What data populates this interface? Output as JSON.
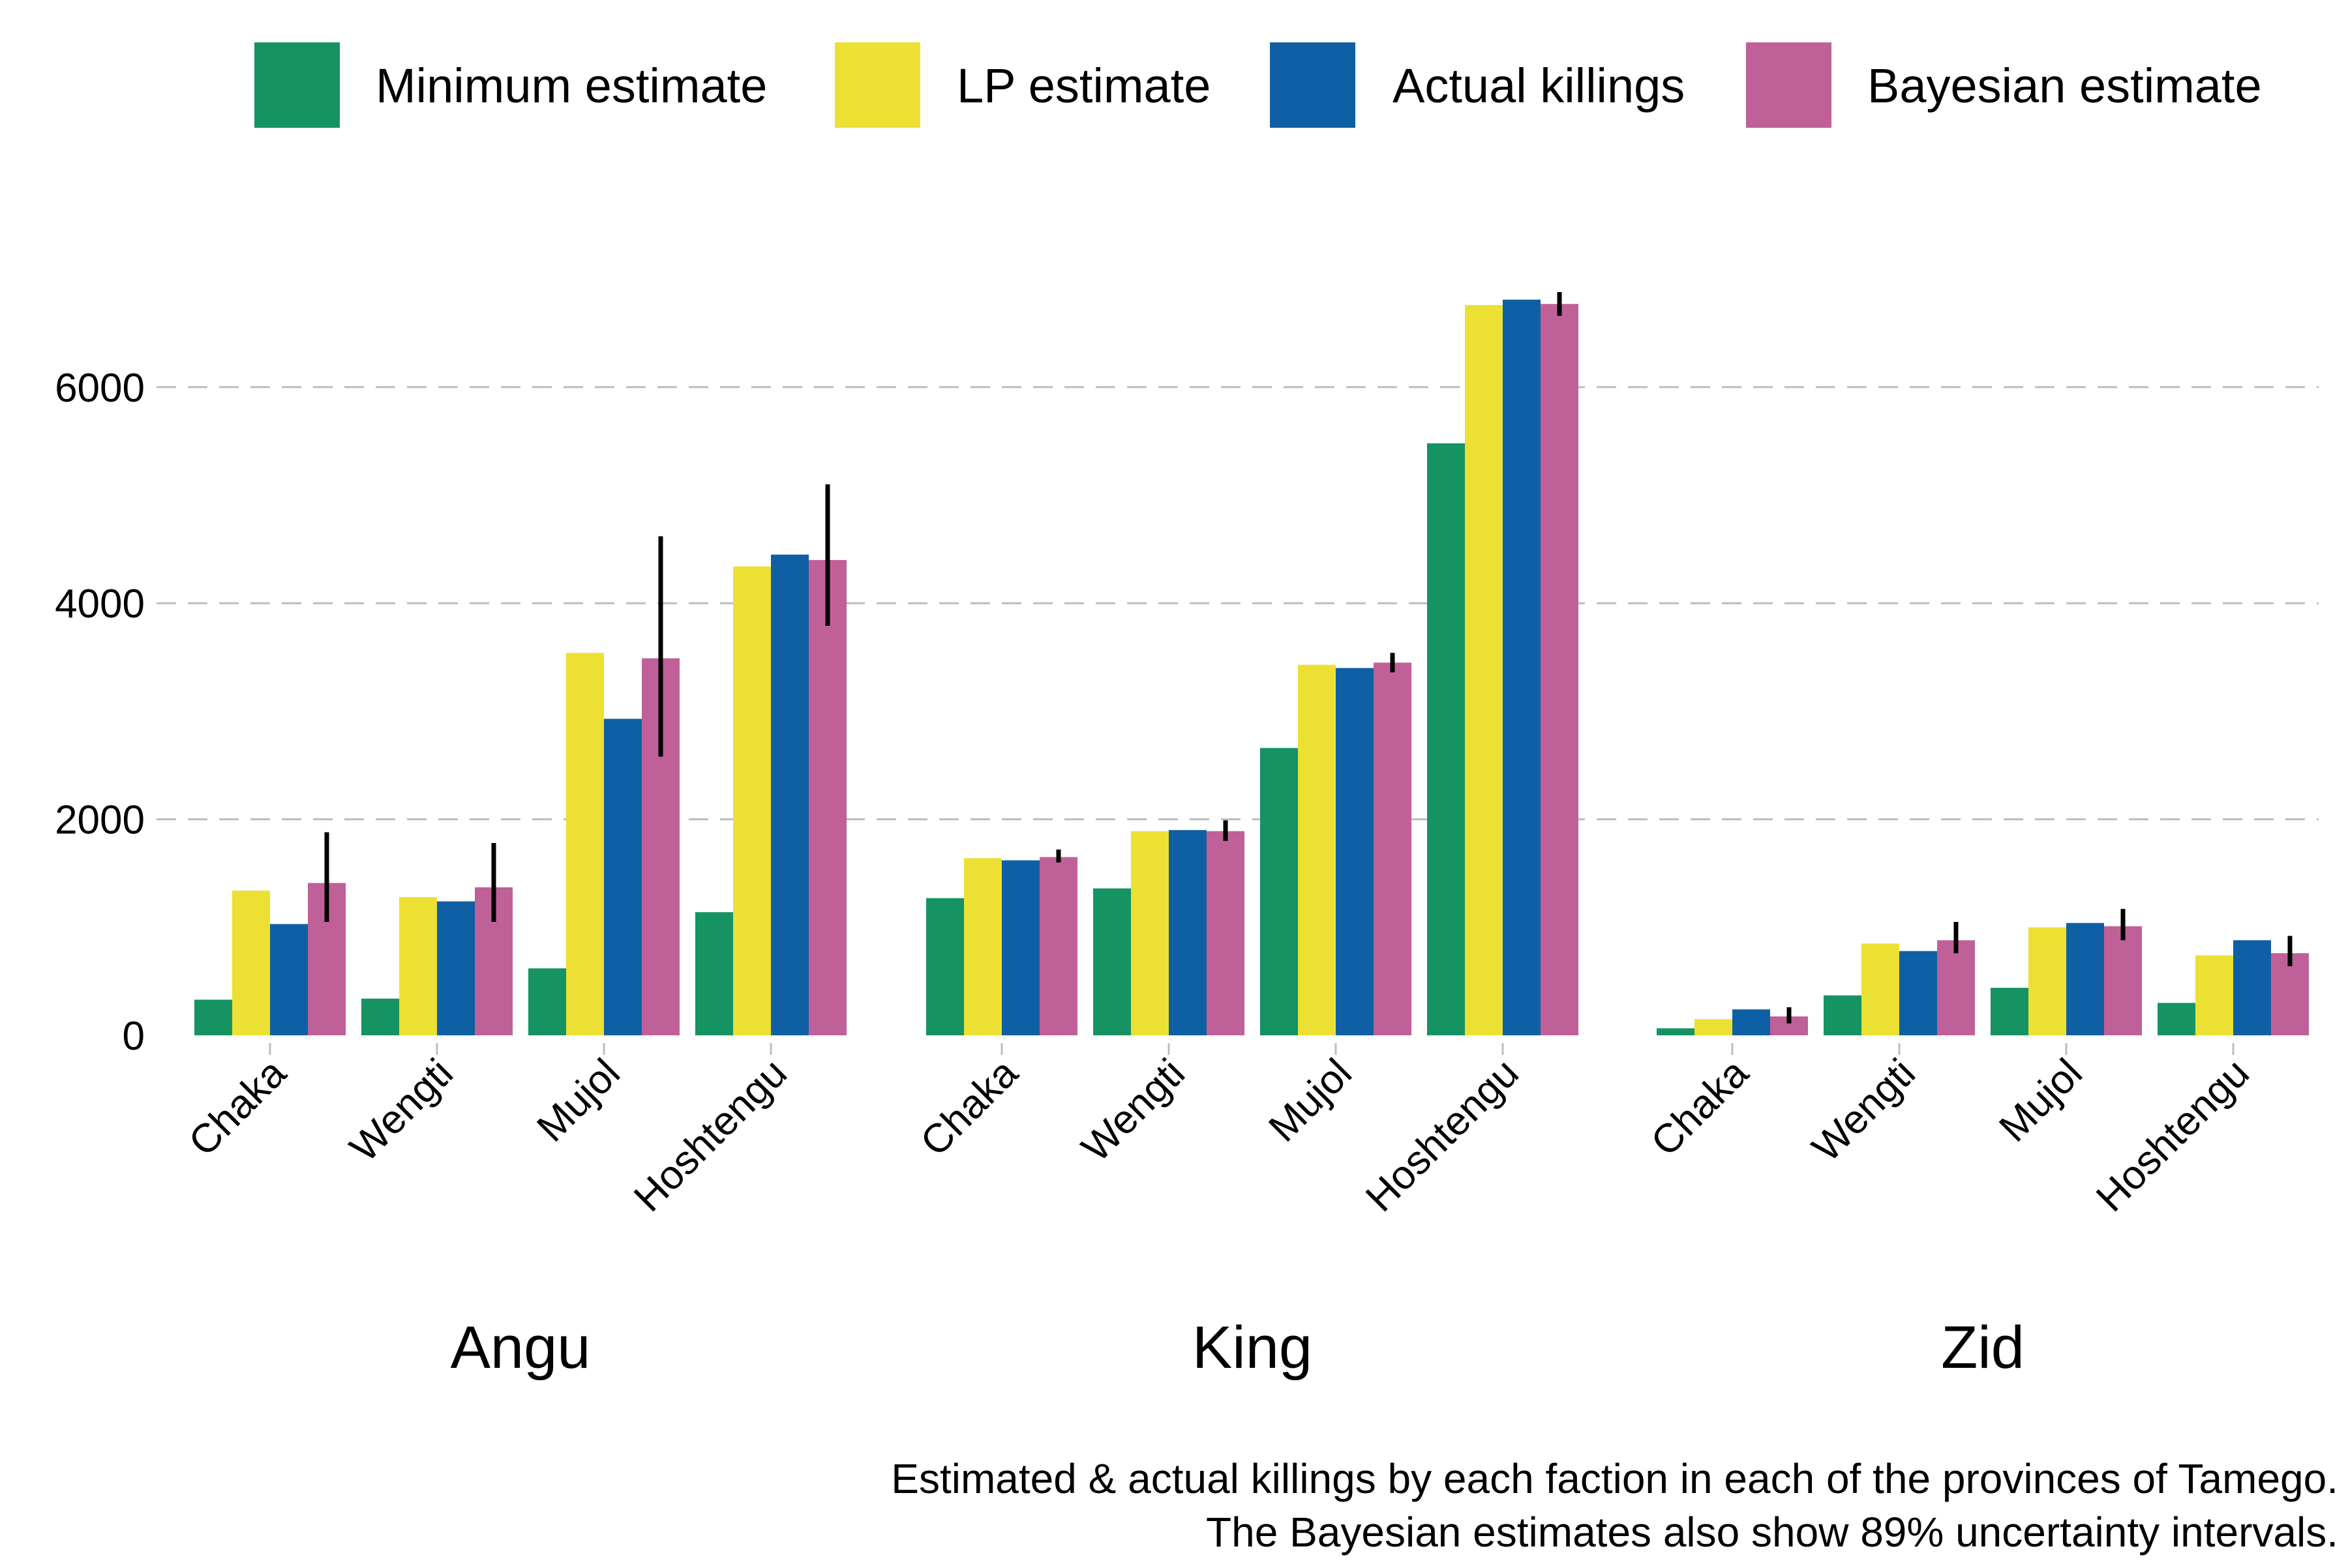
{
  "chart_data": {
    "type": "bar",
    "facets": [
      "Angu",
      "King",
      "Zid"
    ],
    "categories": [
      "Chaka",
      "Wengti",
      "Mujol",
      "Hoshtengu"
    ],
    "ylim": [
      0,
      7000
    ],
    "yticks": [
      0,
      2000,
      4000,
      6000
    ],
    "grid": "horizontal dashed",
    "legend_position": "top",
    "series": [
      {
        "name": "Minimum estimate",
        "color": "#159363",
        "values": {
          "Angu": [
            330,
            340,
            620,
            1140
          ],
          "King": [
            1270,
            1360,
            2660,
            5480
          ],
          "Zid": [
            65,
            370,
            440,
            300
          ]
        }
      },
      {
        "name": "LP estimate",
        "color": "#ECE033",
        "values": {
          "Angu": [
            1340,
            1280,
            3540,
            4340
          ],
          "King": [
            1640,
            1890,
            3430,
            6760
          ],
          "Zid": [
            150,
            850,
            1000,
            740
          ]
        }
      },
      {
        "name": "Actual killings",
        "color": "#0F5FA5",
        "values": {
          "Angu": [
            1030,
            1240,
            2930,
            4450
          ],
          "King": [
            1620,
            1900,
            3400,
            6810
          ],
          "Zid": [
            240,
            780,
            1040,
            880
          ]
        }
      },
      {
        "name": "Bayesian estimate",
        "color": "#C06098",
        "values": {
          "Angu": [
            1410,
            1370,
            3490,
            4400
          ],
          "King": [
            1650,
            1890,
            3450,
            6770
          ],
          "Zid": [
            175,
            880,
            1010,
            760
          ]
        },
        "intervals": {
          "Angu": [
            [
              1050,
              1880
            ],
            [
              1050,
              1780
            ],
            [
              2580,
              4620
            ],
            [
              3790,
              5100
            ]
          ],
          "King": [
            [
              1600,
              1720
            ],
            [
              1800,
              1990
            ],
            [
              3360,
              3540
            ],
            [
              6660,
              6880
            ]
          ],
          "Zid": [
            [
              110,
              260
            ],
            [
              760,
              1050
            ],
            [
              880,
              1170
            ],
            [
              640,
              920
            ]
          ]
        }
      }
    ],
    "caption": [
      "Estimated & actual killings by each faction in each of the provinces of Tamego.",
      "The Bayesian estimates also show 89% uncertainty intervals."
    ]
  }
}
